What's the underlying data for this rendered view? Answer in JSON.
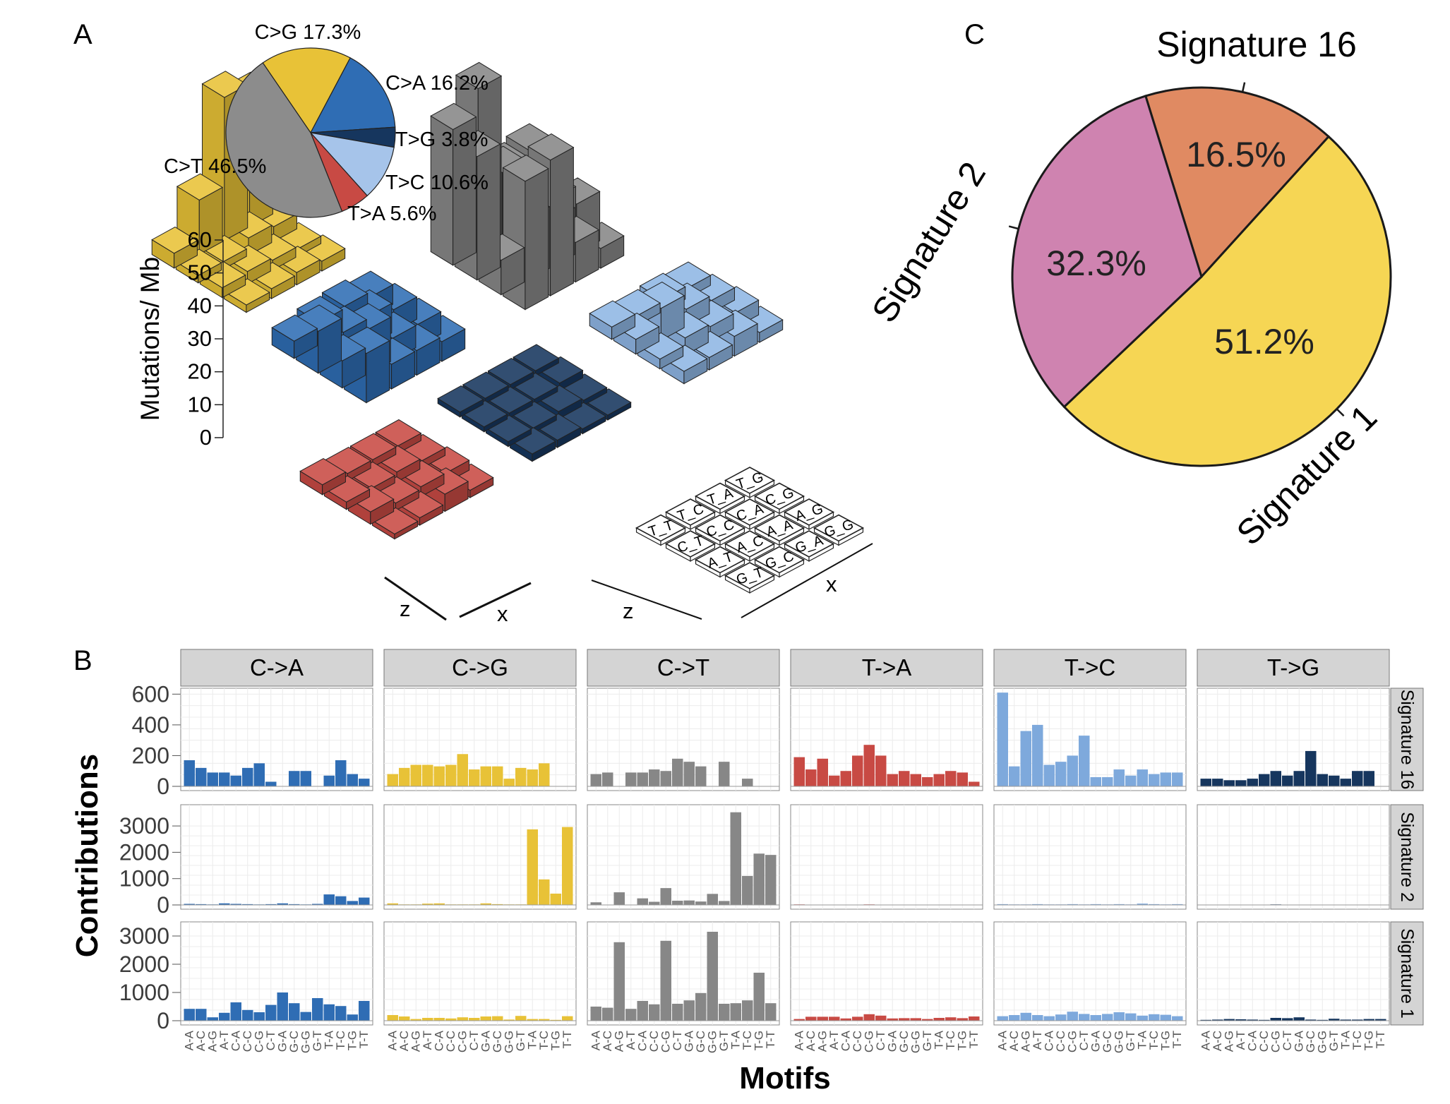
{
  "panels": {
    "a": "A",
    "b": "B",
    "c": "C"
  },
  "colors": {
    "C>A": "#2f6db4",
    "C>G": "#e8c237",
    "C>T": "#878787",
    "T>A": "#c84a44",
    "T>C": "#7ea9dc",
    "T>G": "#16365e"
  },
  "chart_data": [
    {
      "type": "pie",
      "panel": "A",
      "slices": [
        {
          "label": "C>G 17.3%",
          "category": "C>G",
          "value": 17.3,
          "color": "#e8c237"
        },
        {
          "label": "C>A 16.2%",
          "category": "C>A",
          "value": 16.2,
          "color": "#2f6db4"
        },
        {
          "label": "T>G 3.8%",
          "category": "T>G",
          "value": 3.8,
          "color": "#16365e"
        },
        {
          "label": "T>C 10.6%",
          "category": "T>C",
          "value": 10.6,
          "color": "#a6c4ea"
        },
        {
          "label": "T>A 5.6%",
          "category": "T>A",
          "value": 5.6,
          "color": "#c84a44"
        },
        {
          "label": "C>T 46.5%",
          "category": "C>T",
          "value": 46.5,
          "color": "#8c8c8c"
        }
      ]
    },
    {
      "type": "bar3d",
      "panel": "A",
      "ylabel": "Mutations/ Mb",
      "yticks": [
        "60",
        "50",
        "40",
        "30",
        "20",
        "10",
        "0"
      ],
      "ylim": [
        0,
        60
      ],
      "axis_labels": {
        "z": "z",
        "x": "x"
      },
      "context_grid": [
        [
          "T_G",
          "C_G",
          "A_G",
          "G_G"
        ],
        [
          "T_A",
          "C_A",
          "A_A",
          "G_A"
        ],
        [
          "T_C",
          "C_C",
          "A_C",
          "G_C"
        ],
        [
          "T_T",
          "C_T",
          "A_T",
          "G_T"
        ]
      ],
      "blocks": [
        {
          "category": "C>G",
          "values": [
            [
              52,
              6,
              3,
              4
            ],
            [
              58,
              7,
              4,
              5
            ],
            [
              22,
              3,
              5,
              4
            ],
            [
              6,
              3,
              4,
              3
            ]
          ]
        },
        {
          "category": "C>A",
          "values": [
            [
              8,
              9,
              9,
              8
            ],
            [
              10,
              12,
              9,
              10
            ],
            [
              9,
              11,
              18,
              10
            ],
            [
              7,
              17,
              11,
              20
            ]
          ]
        },
        {
          "category": "C>T",
          "values": [
            [
              30,
              16,
              20,
              8
            ],
            [
              28,
              17,
              19,
              16
            ],
            [
              66,
              38,
              25,
              55
            ],
            [
              55,
              50,
              14,
              52
            ]
          ]
        },
        {
          "category": "T>A",
          "values": [
            [
              3,
              3,
              4,
              3
            ],
            [
              3,
              4,
              4,
              7
            ],
            [
              3,
              3,
              3,
              3
            ],
            [
              4,
              3,
              5,
              2
            ]
          ]
        },
        {
          "category": "T>G",
          "values": [
            [
              2,
              3,
              2,
              2
            ],
            [
              2,
              2,
              3,
              2
            ],
            [
              2,
              2,
              2,
              3
            ],
            [
              2,
              2,
              2,
              3
            ]
          ]
        },
        {
          "category": "T>C",
          "values": [
            [
              4,
              5,
              6,
              4
            ],
            [
              5,
              7,
              6,
              8
            ],
            [
              4,
              13,
              7,
              5
            ],
            [
              5,
              6,
              4,
              5
            ]
          ]
        }
      ]
    },
    {
      "type": "bar",
      "panel": "B",
      "xlabel": "Motifs",
      "ylabel": "Contributions",
      "categories": [
        "C->A",
        "C->G",
        "C->T",
        "T->A",
        "T->C",
        "T->G"
      ],
      "motifs": [
        "A-A",
        "A-C",
        "A-G",
        "A-T",
        "C-A",
        "C-C",
        "C-G",
        "C-T",
        "G-A",
        "G-C",
        "G-G",
        "G-T",
        "T-A",
        "T-C",
        "T-G",
        "T-T"
      ],
      "rows": [
        {
          "name": "Signature 16",
          "ylim": [
            0,
            620
          ],
          "yticks": [
            0,
            200,
            400,
            600
          ],
          "tick_labels": [
            "0",
            "200",
            "400",
            "600"
          ],
          "values": [
            [
              170,
              120,
              90,
              90,
              70,
              120,
              150,
              30,
              0,
              100,
              100,
              0,
              70,
              170,
              80,
              50
            ],
            [
              80,
              120,
              140,
              140,
              130,
              140,
              210,
              110,
              130,
              130,
              50,
              120,
              110,
              150,
              0,
              0
            ],
            [
              80,
              90,
              0,
              90,
              90,
              110,
              100,
              180,
              160,
              130,
              0,
              160,
              0,
              50,
              0,
              0
            ],
            [
              190,
              110,
              180,
              70,
              100,
              200,
              270,
              200,
              80,
              100,
              80,
              60,
              80,
              100,
              90,
              30
            ],
            [
              610,
              130,
              360,
              400,
              140,
              160,
              200,
              330,
              60,
              60,
              110,
              70,
              110,
              80,
              90,
              90
            ],
            [
              50,
              50,
              40,
              40,
              50,
              80,
              100,
              70,
              100,
              230,
              80,
              70,
              50,
              100,
              100,
              0
            ]
          ]
        },
        {
          "name": "Signature 2",
          "ylim": [
            0,
            3700
          ],
          "yticks": [
            0,
            1000,
            2000,
            3000
          ],
          "tick_labels": [
            "0",
            "1000",
            "2000",
            "3000"
          ],
          "values": [
            [
              40,
              30,
              20,
              60,
              40,
              30,
              20,
              30,
              60,
              30,
              20,
              40,
              400,
              330,
              150,
              280
            ],
            [
              60,
              20,
              20,
              50,
              60,
              20,
              20,
              20,
              60,
              30,
              20,
              20,
              2870,
              970,
              430,
              2960
            ],
            [
              100,
              0,
              480,
              0,
              250,
              120,
              640,
              160,
              170,
              130,
              420,
              150,
              3520,
              1100,
              1950,
              1900
            ],
            [
              20,
              10,
              10,
              10,
              10,
              10,
              20,
              10,
              10,
              10,
              10,
              10,
              10,
              10,
              10,
              10
            ],
            [
              30,
              20,
              20,
              30,
              20,
              20,
              30,
              20,
              30,
              20,
              30,
              20,
              50,
              30,
              20,
              30
            ],
            [
              10,
              10,
              10,
              10,
              10,
              10,
              20,
              10,
              10,
              10,
              10,
              10,
              10,
              10,
              10,
              10
            ]
          ]
        },
        {
          "name": "Signature 1",
          "ylim": [
            0,
            3400
          ],
          "yticks": [
            0,
            1000,
            2000,
            3000
          ],
          "tick_labels": [
            "0",
            "1000",
            "2000",
            "3000"
          ],
          "values": [
            [
              420,
              420,
              120,
              280,
              650,
              380,
              300,
              560,
              1000,
              620,
              310,
              800,
              580,
              520,
              220,
              700
            ],
            [
              200,
              150,
              60,
              100,
              100,
              80,
              120,
              100,
              150,
              160,
              40,
              170,
              60,
              60,
              30,
              160
            ],
            [
              500,
              460,
              2780,
              420,
              700,
              580,
              2830,
              600,
              720,
              980,
              3150,
              600,
              620,
              720,
              1700,
              620
            ],
            [
              60,
              140,
              140,
              140,
              80,
              140,
              230,
              180,
              80,
              90,
              90,
              60,
              100,
              120,
              90,
              150
            ],
            [
              160,
              200,
              280,
              200,
              160,
              220,
              320,
              240,
              200,
              240,
              300,
              260,
              180,
              230,
              210,
              160
            ],
            [
              30,
              40,
              60,
              50,
              40,
              30,
              100,
              90,
              120,
              40,
              30,
              70,
              40,
              40,
              60,
              60
            ]
          ]
        }
      ]
    },
    {
      "type": "pie",
      "panel": "C",
      "slices": [
        {
          "name": "Signature 16",
          "label": "16.5%",
          "value": 16.5,
          "color": "#e08a62"
        },
        {
          "name": "Signature 1",
          "label": "51.2%",
          "value": 51.2,
          "color": "#f6d654"
        },
        {
          "name": "Signature 2",
          "label": "32.3%",
          "value": 32.3,
          "color": "#cf83b0"
        }
      ]
    }
  ]
}
